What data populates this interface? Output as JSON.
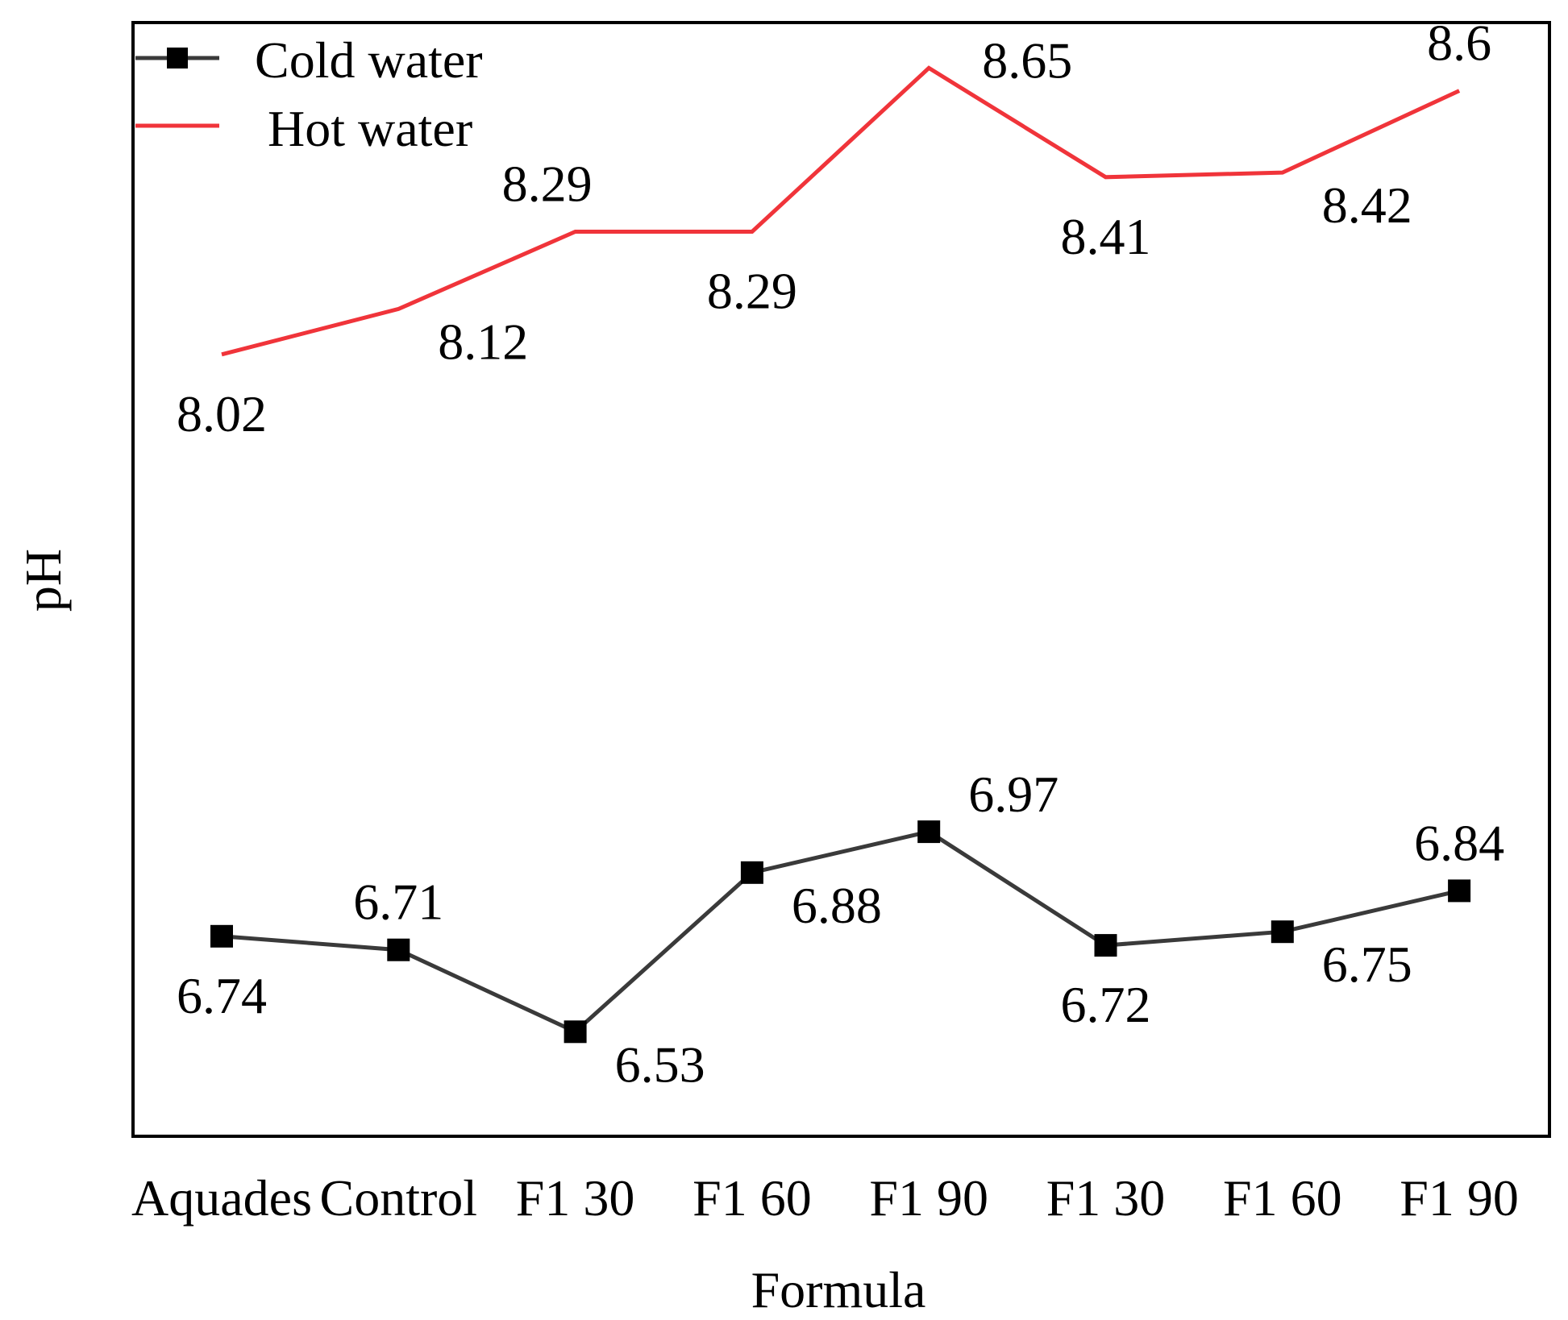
{
  "chart_data": {
    "type": "line",
    "title": "",
    "xlabel": "Formula",
    "ylabel": "pH",
    "categories": [
      "Aquades",
      "Control",
      "F1 30",
      "F1 60",
      "F1 90",
      "F1 30",
      "F1 60",
      "F1 90"
    ],
    "ylim": [
      6.3,
      8.75
    ],
    "grid": false,
    "legend_position": "top-left",
    "series": [
      {
        "name": "Cold water",
        "color": "#3a3a3a",
        "marker": "square",
        "values": [
          6.74,
          6.71,
          6.53,
          6.88,
          6.97,
          6.72,
          6.75,
          6.84
        ],
        "labels": [
          "6.74",
          "6.71",
          "6.53",
          "6.88",
          "6.97",
          "6.72",
          "6.75",
          "6.84"
        ],
        "label_placement": [
          "below",
          "above",
          "below-right",
          "below-right",
          "above-right",
          "below",
          "below-right",
          "above"
        ]
      },
      {
        "name": "Hot water",
        "color": "#f0343a",
        "marker": "none",
        "values": [
          8.02,
          8.12,
          8.29,
          8.29,
          8.65,
          8.41,
          8.42,
          8.6
        ],
        "labels": [
          "8.02",
          "8.12",
          "8.29",
          "8.29",
          "8.65",
          "8.41",
          "8.42",
          "8.6"
        ],
        "label_placement": [
          "below",
          "below-right",
          "above-left",
          "below",
          "right",
          "below",
          "below-right",
          "above"
        ]
      }
    ]
  }
}
